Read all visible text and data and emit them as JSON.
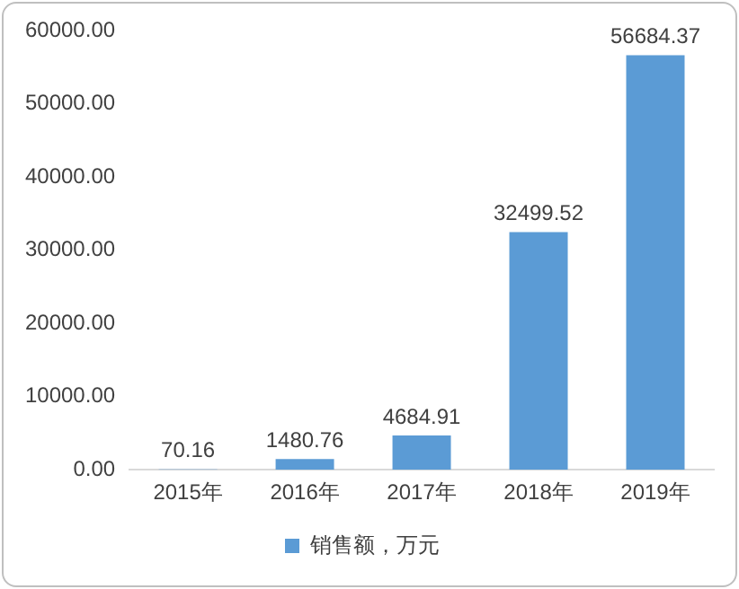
{
  "chart_data": {
    "type": "bar",
    "categories": [
      "2015年",
      "2016年",
      "2017年",
      "2018年",
      "2019年"
    ],
    "series": [
      {
        "name": "销售额，万元",
        "color": "#5b9bd5",
        "values": [
          70.16,
          1480.76,
          4684.91,
          32499.52,
          56684.37
        ]
      }
    ],
    "ylim": [
      0,
      60000
    ],
    "yticks": [
      {
        "value": 0,
        "label": "0.00"
      },
      {
        "value": 10000,
        "label": "10000.00"
      },
      {
        "value": 20000,
        "label": "20000.00"
      },
      {
        "value": 30000,
        "label": "30000.00"
      },
      {
        "value": 40000,
        "label": "40000.00"
      },
      {
        "value": 50000,
        "label": "50000.00"
      },
      {
        "value": 60000,
        "label": "60000.00"
      }
    ],
    "grid": false,
    "legend": "bottom",
    "data_labels": true
  }
}
